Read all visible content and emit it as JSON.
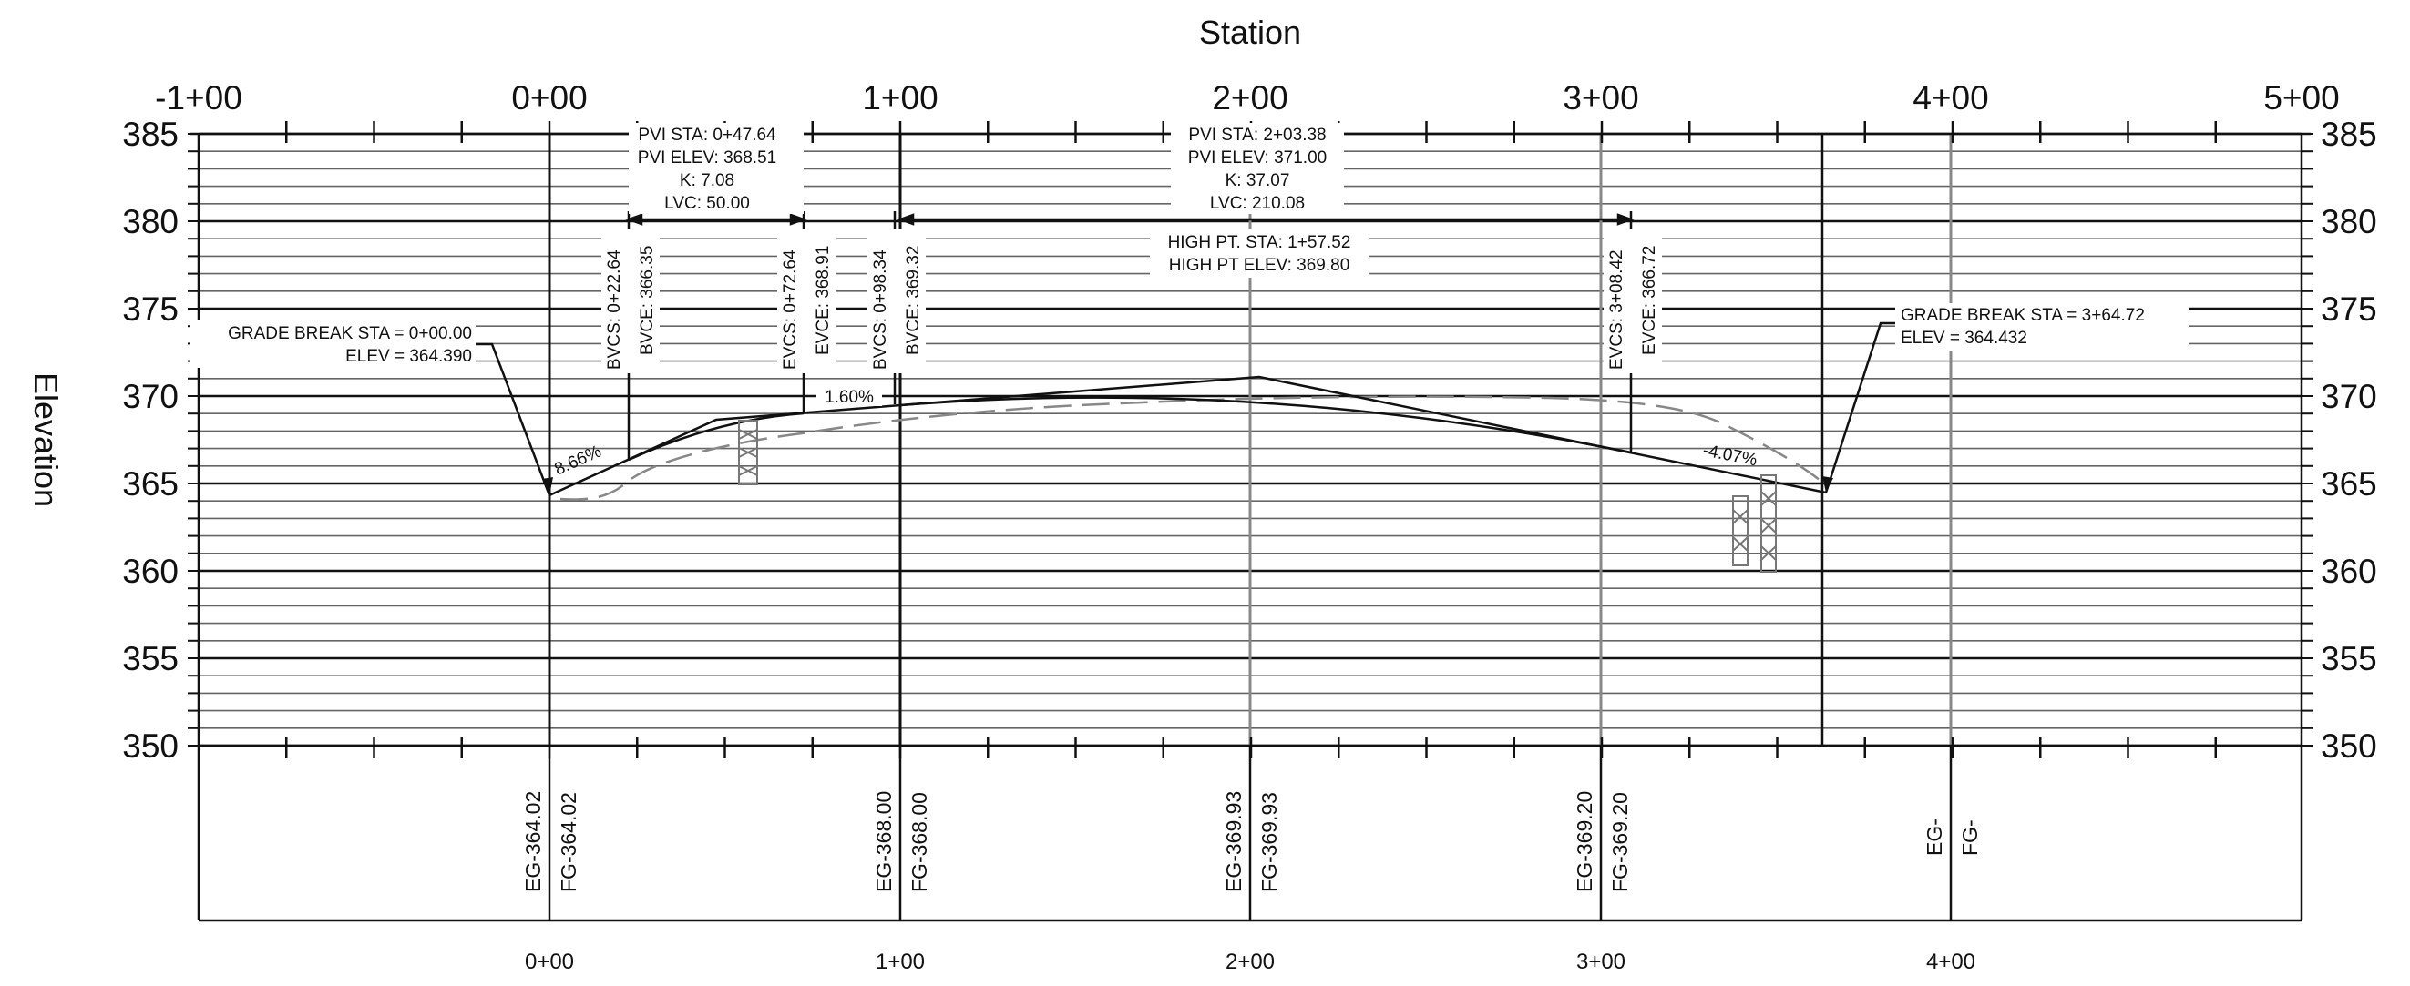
{
  "axes": {
    "x_title": "Station",
    "y_title": "Elevation",
    "top_station_labels": [
      "-1+00",
      "0+00",
      "1+00",
      "2+00",
      "3+00",
      "4+00",
      "5+00"
    ],
    "elevation_labels": [
      "385",
      "380",
      "375",
      "370",
      "365",
      "360",
      "355",
      "350"
    ],
    "bottom_station_labels": [
      "0+00",
      "1+00",
      "2+00",
      "3+00",
      "4+00"
    ]
  },
  "pvi_1": {
    "sta": "PVI STA: 0+47.64",
    "elev": "PVI ELEV: 368.51",
    "k": "K: 7.08",
    "lvc": "LVC: 50.00"
  },
  "pvi_2": {
    "sta": "PVI STA: 2+03.38",
    "elev": "PVI ELEV: 371.00",
    "k": "K: 37.07",
    "lvc": "LVC: 210.08"
  },
  "high_point": {
    "sta": "HIGH PT. STA: 1+57.52",
    "elev": "HIGH PT ELEV: 369.80"
  },
  "grade_break_left": {
    "sta": "GRADE BREAK STA = 0+00.00",
    "elev": "ELEV =  364.390"
  },
  "grade_break_right": {
    "sta": "GRADE BREAK STA = 3+64.72",
    "elev": "ELEV =  364.432"
  },
  "vertical_labels": {
    "bvcs_1": "BVCS: 0+22.64",
    "bvce_1": "BVCE: 366.35",
    "evcs_1": "EVCS: 0+72.64",
    "evce_1": "EVCE: 368.91",
    "bvcs_2": "BVCS: 0+98.34",
    "bvce_2": "BVCE: 369.32",
    "evcs_2": "EVCS: 3+08.42",
    "evce_2": "EVCE: 366.72"
  },
  "grades": {
    "g1": "8.66%",
    "g2": "1.60%",
    "g3": "-4.07%"
  },
  "data_band": {
    "eg_0": "EG-364.02",
    "fg_0": "FG-364.02",
    "eg_1": "EG-368.00",
    "fg_1": "FG-368.00",
    "eg_2": "EG-369.93",
    "fg_2": "FG-369.93",
    "eg_3": "EG-369.20",
    "fg_3": "FG-369.20",
    "eg_4": "EG-",
    "fg_4": "FG-"
  },
  "colors": {
    "ink": "#111111",
    "grid": "#555555",
    "existing_ground": "#888888",
    "structure": "#7a7a7a"
  }
}
